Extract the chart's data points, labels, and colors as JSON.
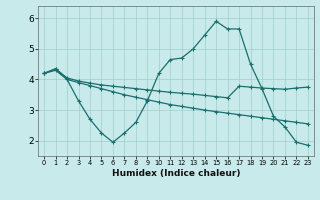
{
  "xlabel": "Humidex (Indice chaleur)",
  "bg_color": "#c8eaea",
  "grid_color": "#a0cccc",
  "line_color": "#1a6e6e",
  "ylim": [
    1.5,
    6.4
  ],
  "xlim": [
    -0.5,
    23.5
  ],
  "yticks": [
    2,
    3,
    4,
    5,
    6
  ],
  "xticks": [
    0,
    1,
    2,
    3,
    4,
    5,
    6,
    7,
    8,
    9,
    10,
    11,
    12,
    13,
    14,
    15,
    16,
    17,
    18,
    19,
    20,
    21,
    22,
    23
  ],
  "line1_x": [
    0,
    1,
    2,
    3,
    4,
    5,
    6,
    7,
    8,
    9,
    10,
    11,
    12,
    13,
    14,
    15,
    16,
    17,
    18,
    19,
    20,
    21,
    22,
    23
  ],
  "line1_y": [
    4.2,
    4.35,
    4.05,
    3.95,
    3.88,
    3.82,
    3.78,
    3.74,
    3.7,
    3.66,
    3.62,
    3.58,
    3.55,
    3.52,
    3.48,
    3.44,
    3.4,
    3.78,
    3.75,
    3.72,
    3.7,
    3.68,
    3.72,
    3.75
  ],
  "line2_x": [
    0,
    1,
    2,
    3,
    4,
    5,
    6,
    7,
    8,
    9,
    10,
    11,
    12,
    13,
    14,
    15,
    16,
    17,
    18,
    19,
    20,
    21,
    22,
    23
  ],
  "line2_y": [
    4.2,
    4.3,
    4.0,
    3.9,
    3.8,
    3.7,
    3.6,
    3.5,
    3.42,
    3.34,
    3.26,
    3.18,
    3.12,
    3.06,
    3.0,
    2.95,
    2.9,
    2.85,
    2.8,
    2.75,
    2.7,
    2.65,
    2.6,
    2.55
  ],
  "line3_x": [
    0,
    1,
    2,
    3,
    4,
    5,
    6,
    7,
    8,
    9,
    10,
    11,
    12,
    13,
    14,
    15,
    16,
    17,
    18,
    19,
    20,
    21,
    22,
    23
  ],
  "line3_y": [
    4.2,
    4.35,
    4.0,
    3.3,
    2.7,
    2.25,
    1.95,
    2.25,
    2.6,
    3.3,
    4.2,
    4.65,
    4.7,
    5.0,
    5.45,
    5.9,
    5.65,
    5.65,
    4.5,
    3.7,
    2.8,
    2.45,
    1.95,
    1.85
  ]
}
